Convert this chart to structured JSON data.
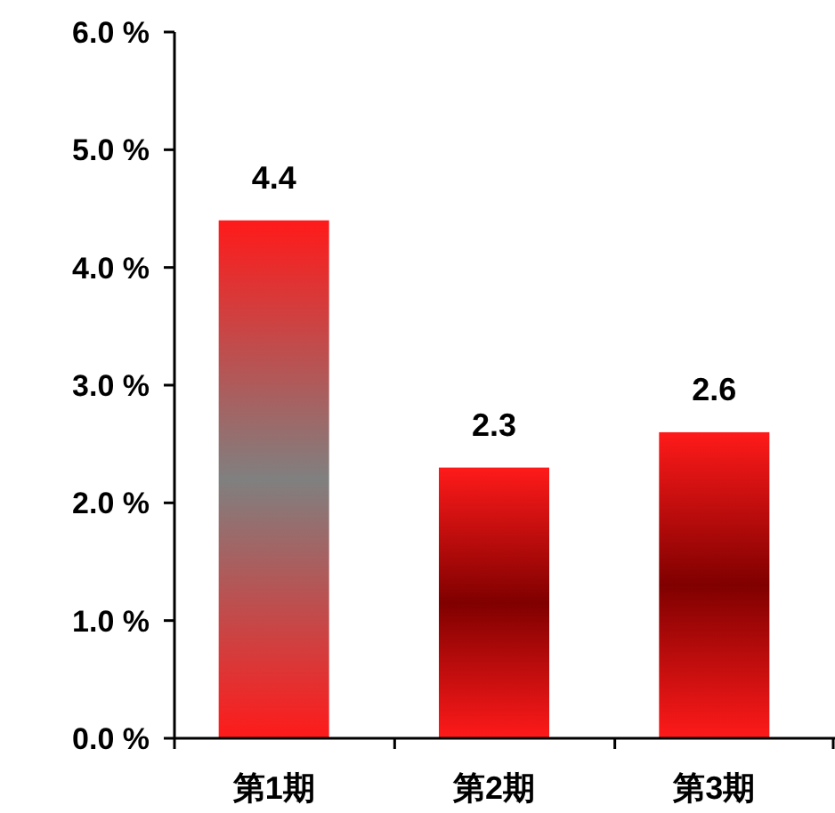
{
  "chart_data": {
    "type": "bar",
    "categories": [
      "第1期",
      "第2期",
      "第3期"
    ],
    "values": [
      4.4,
      2.3,
      2.6
    ],
    "colors": [
      "#808080",
      "#800000",
      "#800000"
    ],
    "ylim": [
      0,
      6
    ],
    "yticks": [
      {
        "value": 0,
        "label": "0.0 %"
      },
      {
        "value": 1,
        "label": "1.0 %"
      },
      {
        "value": 2,
        "label": "2.0 %"
      },
      {
        "value": 3,
        "label": "3.0 %"
      },
      {
        "value": 4,
        "label": "4.0 %"
      },
      {
        "value": 5,
        "label": "5.0 %"
      },
      {
        "value": 6,
        "label": "6.0 %"
      }
    ],
    "data_labels": true
  }
}
